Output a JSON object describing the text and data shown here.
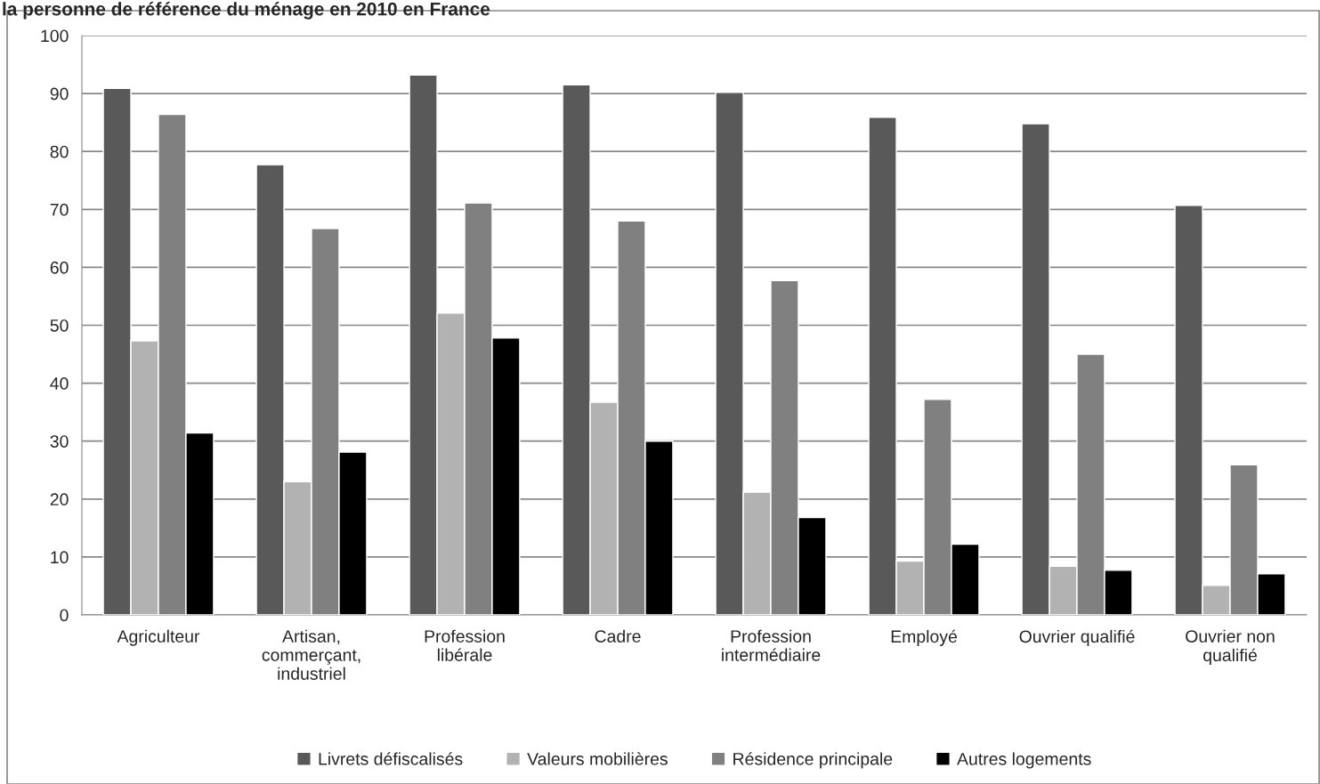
{
  "chart_data": {
    "type": "bar",
    "title": "la personne de référence du ménage en 2010 en France",
    "categories": [
      "Agriculteur",
      "Artisan,\ncommerçant,\nindustriel",
      "Profession\nlibérale",
      "Cadre",
      "Profession\nintermédiaire",
      "Employé",
      "Ouvrier qualifié",
      "Ouvrier non\nqualifié"
    ],
    "series": [
      {
        "name": "Livrets défiscalisés",
        "color": "#595959",
        "values": [
          90.9,
          77.7,
          93.2,
          91.5,
          90.2,
          85.9,
          84.8,
          70.7
        ]
      },
      {
        "name": "Valeurs mobilières",
        "color": "#b2b2b2",
        "values": [
          47.3,
          23.0,
          52.1,
          36.7,
          21.2,
          9.3,
          8.4,
          5.1
        ]
      },
      {
        "name": "Résidence principale",
        "color": "#808080",
        "values": [
          86.4,
          66.7,
          71.1,
          68.0,
          57.7,
          37.2,
          45.0,
          25.9
        ]
      },
      {
        "name": "Autres logements",
        "color": "#000000",
        "values": [
          31.4,
          28.1,
          47.8,
          30.0,
          16.8,
          12.2,
          7.7,
          7.1
        ]
      }
    ],
    "ylim": [
      0,
      100
    ],
    "yticks": [
      0,
      10,
      20,
      30,
      40,
      50,
      60,
      70,
      80,
      90,
      100
    ],
    "grid": "y",
    "legend": "bottom"
  }
}
